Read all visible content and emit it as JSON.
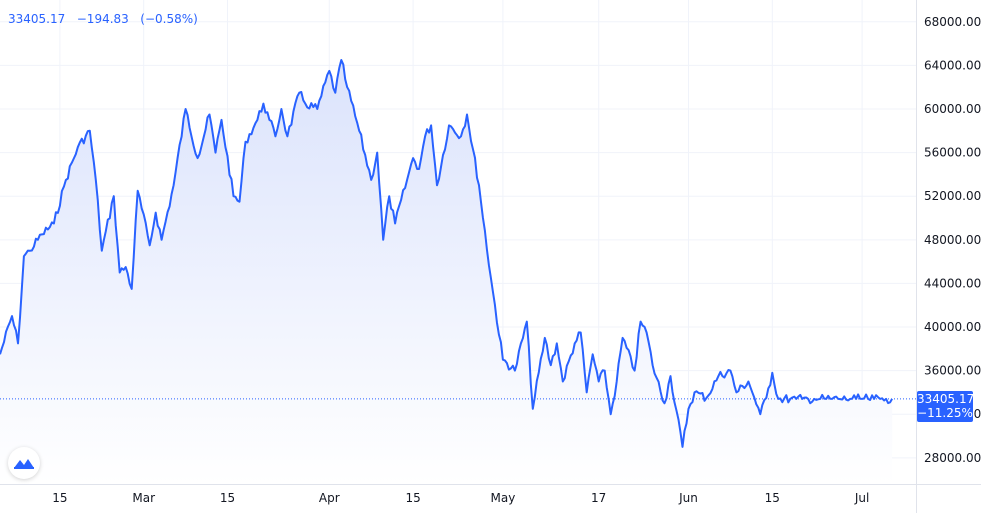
{
  "legend": {
    "price": "33405.17",
    "change": "−194.83",
    "change_pct": "(−0.58%)"
  },
  "last_price_tag": {
    "price": "33405.17",
    "change_pct": "−11.25%"
  },
  "colors": {
    "line": "#2962ff",
    "area_top": "#dbe3fc",
    "area_bottom": "#ffffff",
    "grid": "#f0f3fa",
    "axis_text": "#131722",
    "border": "#e0e3eb"
  },
  "logo_icon": "tradingview-logo-icon",
  "chart_data": {
    "type": "area",
    "grid": true,
    "y_axis_position": "right",
    "ylim": [
      25600,
      70000
    ],
    "xlim": [
      0,
      153
    ],
    "y_ticks": [
      "28000.00",
      "32000.00",
      "36000.00",
      "40000.00",
      "44000.00",
      "48000.00",
      "52000.00",
      "56000.00",
      "60000.00",
      "64000.00",
      "68000.00"
    ],
    "y_tick_values": [
      28000,
      32000,
      36000,
      40000,
      44000,
      48000,
      52000,
      56000,
      60000,
      64000,
      68000
    ],
    "x_tick_labels": [
      "15",
      "Mar",
      "15",
      "Apr",
      "15",
      "May",
      "17",
      "Jun",
      "15",
      "Jul"
    ],
    "x_tick_positions": [
      10,
      24,
      38,
      55,
      69,
      84,
      100,
      115,
      129,
      144
    ],
    "last_value": 33405.17,
    "series": [
      {
        "x": [
          0,
          2,
          3,
          4,
          5,
          7,
          9,
          11,
          13,
          15,
          16,
          17,
          19,
          20,
          21,
          22,
          23,
          25,
          26,
          27,
          29,
          31,
          33,
          35,
          36,
          37,
          39,
          40,
          41,
          43,
          44,
          45,
          46,
          47,
          48,
          50,
          51,
          53,
          55,
          56,
          57,
          58,
          60,
          62,
          63,
          64,
          65,
          66,
          68,
          69,
          70,
          71,
          72,
          73,
          75,
          77,
          78,
          80,
          82,
          84,
          86,
          88,
          89,
          91,
          92,
          93,
          94,
          96,
          97,
          98,
          99,
          100,
          101,
          102,
          103,
          104,
          106,
          107,
          108,
          109,
          111,
          112,
          114,
          115,
          116,
          118,
          120,
          122,
          123,
          125,
          126,
          127,
          128,
          129,
          130,
          132,
          133,
          134,
          135,
          136,
          137,
          138,
          139,
          140,
          142,
          143,
          144,
          145,
          146,
          147,
          148,
          149
        ],
        "values": [
          37500,
          41000,
          38500,
          46500,
          47000,
          48500,
          49500,
          53500,
          56500,
          58000,
          53500,
          47000,
          52000,
          45000,
          45500,
          43500,
          52500,
          47500,
          50500,
          48000,
          53000,
          60000,
          55500,
          59500,
          56000,
          59000,
          52000,
          51500,
          57000,
          59000,
          60500,
          59000,
          57500,
          60000,
          57500,
          61500,
          60500,
          60000,
          63500,
          61500,
          64500,
          62000,
          58000,
          53500,
          56000,
          48000,
          52000,
          49500,
          53500,
          55500,
          54500,
          57500,
          58500,
          53000,
          58500,
          57500,
          59500,
          53000,
          44500,
          37000,
          36000,
          40500,
          32500,
          39000,
          36500,
          38500,
          35000,
          38500,
          39500,
          34000,
          37500,
          35000,
          36000,
          32000,
          35000,
          39000,
          36000,
          40500,
          39500,
          36500,
          33000,
          35500,
          29000,
          32500,
          34000,
          33500,
          35500,
          36000,
          34000,
          35000,
          33500,
          32000,
          33500,
          35800,
          33405,
          33405,
          33405,
          33405,
          33405,
          33405,
          33405,
          33405,
          33405,
          33405,
          33405,
          33405,
          33405,
          33405,
          33405,
          33405,
          33405,
          33405
        ]
      }
    ]
  }
}
